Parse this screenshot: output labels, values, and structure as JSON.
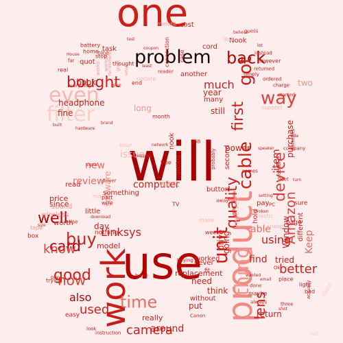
{
  "word_cloud": {
    "background": "#fdeeed",
    "palette": [
      "#b30000",
      "#cc1f1a",
      "#e0403a",
      "#ef6a62",
      "#f7938a",
      "#fab6ae",
      "#f9cfc8"
    ],
    "words": [
      {
        "text": "one",
        "color": "#cc1f1a"
      },
      {
        "text": "work",
        "color": "#c81d18"
      },
      {
        "text": "use",
        "color": "#b30000"
      },
      {
        "text": "will",
        "color": "#a80000"
      },
      {
        "text": "product",
        "color": "#f08a82"
      },
      {
        "text": "problem",
        "color": "#1f0505"
      },
      {
        "text": "back",
        "color": "#b30000"
      },
      {
        "text": "device",
        "color": "#e0403a"
      },
      {
        "text": "Amazon",
        "color": "#e0403a"
      },
      {
        "text": "unit",
        "color": "#cc1f1a"
      },
      {
        "text": "cable",
        "color": "#cc1f1a"
      },
      {
        "text": "time",
        "color": "#ef6a62"
      },
      {
        "text": "thing",
        "color": "#f7938a"
      },
      {
        "text": "bought",
        "color": "#cc1f1a"
      },
      {
        "text": "filter",
        "color": "#f9cfc8"
      },
      {
        "text": "even",
        "color": "#fab6ae"
      },
      {
        "text": "got",
        "color": "#cc1f1a"
      },
      {
        "text": "good",
        "color": "#cc1f1a"
      },
      {
        "text": "buy",
        "color": "#cc1f1a"
      },
      {
        "text": "card",
        "color": "#b30000"
      },
      {
        "text": "well",
        "color": "#b30000"
      },
      {
        "text": "now",
        "color": "#e0403a"
      },
      {
        "text": "first",
        "color": "#cc1f1a"
      },
      {
        "text": "quality",
        "color": "#cc1f1a"
      },
      {
        "text": "know",
        "color": "#e0403a"
      },
      {
        "text": "way",
        "color": "#e0403a"
      },
      {
        "text": "camera",
        "color": "#cc1f1a"
      },
      {
        "text": "used",
        "color": "#cc1f1a"
      },
      {
        "text": "better",
        "color": "#cc1f1a"
      },
      {
        "text": "lens",
        "color": "#cc1f1a"
      },
      {
        "text": "much",
        "color": "#cc1f1a"
      },
      {
        "text": "computer",
        "color": "#cc1f1a"
      },
      {
        "text": "item",
        "color": "#cc1f1a"
      },
      {
        "text": "Linksys",
        "color": "#cc1f1a"
      },
      {
        "text": "using",
        "color": "#cc1f1a"
      },
      {
        "text": "also",
        "color": "#b30000"
      },
      {
        "text": "review",
        "color": "#ef6a62"
      },
      {
        "text": "new",
        "color": "#ef6a62"
      },
      {
        "text": "issue",
        "color": "#fab6ae"
      },
      {
        "text": "software",
        "color": "#f7938a"
      },
      {
        "text": "return",
        "color": "#cc1f1a"
      },
      {
        "text": "tried",
        "color": "#cc1f1a"
      },
      {
        "text": "find",
        "color": "#cc1f1a"
      },
      {
        "text": "Keep",
        "color": "#ef6a62"
      },
      {
        "text": "able",
        "color": "#ef6a62"
      },
      {
        "text": "headphone",
        "color": "#cc1f1a"
      },
      {
        "text": "need",
        "color": "#cc1f1a"
      },
      {
        "text": "think",
        "color": "#cc1f1a"
      },
      {
        "text": "really",
        "color": "#cc1f1a"
      },
      {
        "text": "around",
        "color": "#cc1f1a"
      },
      {
        "text": "drive",
        "color": "#cc1f1a"
      },
      {
        "text": "going",
        "color": "#cc1f1a"
      },
      {
        "text": "received",
        "color": "#fab6ae"
      },
      {
        "text": "Window",
        "color": "#cc1f1a"
      },
      {
        "text": "different",
        "color": "#cc1f1a"
      },
      {
        "text": "purchase",
        "color": "#cc1f1a"
      },
      {
        "text": "book",
        "color": "#cc1f1a"
      },
      {
        "text": "nook",
        "color": "#cc1f1a"
      },
      {
        "text": "year",
        "color": "#cc1f1a"
      },
      {
        "text": "two",
        "color": "#f7938a"
      },
      {
        "text": "long",
        "color": "#f7938a"
      },
      {
        "text": "want",
        "color": "#f7938a"
      },
      {
        "text": "worked",
        "color": "#cc1f1a"
      },
      {
        "text": "button",
        "color": "#cc1f1a"
      },
      {
        "text": "pay",
        "color": "#cc1f1a"
      },
      {
        "text": "since",
        "color": "#cc1f1a"
      },
      {
        "text": "price",
        "color": "#cc1f1a"
      },
      {
        "text": "worth",
        "color": "#cc1f1a"
      },
      {
        "text": "fine",
        "color": "#cc1f1a"
      },
      {
        "text": "read",
        "color": "#cc1f1a"
      },
      {
        "text": "day",
        "color": "#cc1f1a"
      },
      {
        "text": "little",
        "color": "#cc1f1a"
      },
      {
        "text": "model",
        "color": "#cc1f1a"
      },
      {
        "text": "nothing",
        "color": "#cc1f1a"
      },
      {
        "text": "sure",
        "color": "#cc1f1a"
      },
      {
        "text": "page",
        "color": "#cc1f1a"
      },
      {
        "text": "still",
        "color": "#cc1f1a"
      },
      {
        "text": "power",
        "color": "#cc1f1a"
      },
      {
        "text": "second",
        "color": "#cc1f1a"
      },
      {
        "text": "replacement",
        "color": "#cc1f1a"
      },
      {
        "text": "without",
        "color": "#cc1f1a"
      },
      {
        "text": "never",
        "color": "#cc1f1a"
      },
      {
        "text": "put",
        "color": "#cc1f1a"
      },
      {
        "text": "something",
        "color": "#cc1f1a"
      },
      {
        "text": "another",
        "color": "#cc1f1a"
      },
      {
        "text": "many",
        "color": "#cc1f1a"
      },
      {
        "text": "cord",
        "color": "#cc1f1a"
      },
      {
        "text": "cost",
        "color": "#cc1f1a"
      },
      {
        "text": "Nook",
        "color": "#cc1f1a"
      },
      {
        "text": "home",
        "color": "#cc1f1a"
      },
      {
        "text": "battery",
        "color": "#cc1f1a"
      },
      {
        "text": "minute",
        "color": "#f7938a"
      },
      {
        "text": "month",
        "color": "#cc1f1a"
      },
      {
        "text": "however",
        "color": "#cc1f1a"
      },
      {
        "text": "quot",
        "color": "#cc1f1a"
      },
      {
        "text": "end",
        "color": "#cc1f1a"
      },
      {
        "text": "wireless",
        "color": "#f7938a"
      },
      {
        "text": "sound",
        "color": "#f7938a"
      },
      {
        "text": "tape",
        "color": "#f7938a"
      },
      {
        "text": "box",
        "color": "#cc1f1a"
      },
      {
        "text": "hold",
        "color": "#cc1f1a"
      },
      {
        "text": "plastic",
        "color": "#fab6ae"
      },
      {
        "text": "cheap",
        "color": "#fab6ae"
      },
      {
        "text": "make",
        "color": "#fab6ae"
      },
      {
        "text": "support",
        "color": "#fab6ae"
      },
      {
        "text": "update",
        "color": "#fab6ae"
      },
      {
        "text": "hour",
        "color": "#fab6ae"
      },
      {
        "text": "made",
        "color": "#fab6ae"
      },
      {
        "text": "last",
        "color": "#fab6ae"
      },
      {
        "text": "free",
        "color": "#cc1f1a"
      },
      {
        "text": "part",
        "color": "#cc1f1a"
      },
      {
        "text": "wire",
        "color": "#cc1f1a"
      },
      {
        "text": "Glass",
        "color": "#f9cfc8"
      },
      {
        "text": "half",
        "color": "#f9cfc8"
      },
      {
        "text": "test",
        "color": "#cc1f1a"
      },
      {
        "text": "connection",
        "color": "#cc1f1a"
      },
      {
        "text": "reader",
        "color": "#cc1f1a"
      },
      {
        "text": "real",
        "color": "#cc1f1a"
      },
      {
        "text": "nice",
        "color": "#cc1f1a"
      },
      {
        "text": "far",
        "color": "#cc1f1a"
      },
      {
        "text": "works",
        "color": "#f7938a"
      },
      {
        "text": "working",
        "color": "#f7938a"
      },
      {
        "text": "recommend",
        "color": "#f7938a"
      },
      {
        "text": "great",
        "color": "#f7938a"
      },
      {
        "text": "small",
        "color": "#f7938a"
      },
      {
        "text": "easy",
        "color": "#cc1f1a"
      },
      {
        "text": "look",
        "color": "#cc1f1a"
      },
      {
        "text": "play",
        "color": "#cc1f1a"
      },
      {
        "text": "trying",
        "color": "#cc1f1a"
      },
      {
        "text": "signal",
        "color": "#cc1f1a"
      },
      {
        "text": "network",
        "color": "#cc1f1a"
      },
      {
        "text": "brand",
        "color": "#cc1f1a"
      },
      {
        "text": "size",
        "color": "#cc1f1a"
      },
      {
        "text": "TV",
        "color": "#cc1f1a"
      },
      {
        "text": "hard",
        "color": "#cc1f1a"
      },
      {
        "text": "light",
        "color": "#cc1f1a"
      },
      {
        "text": "place",
        "color": "#cc1f1a"
      },
      {
        "text": "shot",
        "color": "#cc1f1a"
      },
      {
        "text": "Canon",
        "color": "#cc1f1a"
      },
      {
        "text": "always",
        "color": "#cc1f1a"
      },
      {
        "text": "charge",
        "color": "#cc1f1a"
      },
      {
        "text": "started",
        "color": "#cc1f1a"
      },
      {
        "text": "fit",
        "color": "#cc1f1a"
      },
      {
        "text": "instruction",
        "color": "#cc1f1a"
      },
      {
        "text": "ordered",
        "color": "#cc1f1a"
      },
      {
        "text": "returned",
        "color": "#cc1f1a"
      },
      {
        "text": "maybe",
        "color": "#cc1f1a"
      },
      {
        "text": "USB",
        "color": "#cc1f1a"
      },
      {
        "text": "bad",
        "color": "#cc1f1a"
      },
      {
        "text": "everything",
        "color": "#cc1f1a"
      },
      {
        "text": "guess",
        "color": "#cc1f1a"
      },
      {
        "text": "simply",
        "color": "#cc1f1a"
      },
      {
        "text": "case",
        "color": "#cc1f1a"
      },
      {
        "text": "coupon",
        "color": "#cc1f1a"
      },
      {
        "text": "buying",
        "color": "#cc1f1a"
      },
      {
        "text": "driver",
        "color": "#cc1f1a"
      },
      {
        "text": "instead",
        "color": "#cc1f1a"
      },
      {
        "text": "noise",
        "color": "#cc1f1a"
      },
      {
        "text": "Ok",
        "color": "#cc1f1a"
      },
      {
        "text": "lot",
        "color": "#cc1f1a"
      },
      {
        "text": "company",
        "color": "#cc1f1a"
      },
      {
        "text": "speaker",
        "color": "#cc1f1a"
      },
      {
        "text": "week",
        "color": "#cc1f1a"
      },
      {
        "text": "task",
        "color": "#cc1f1a"
      },
      {
        "text": "stop",
        "color": "#cc1f1a"
      },
      {
        "text": "thought",
        "color": "#cc1f1a"
      },
      {
        "text": "batteries",
        "color": "#cc1f1a"
      },
      {
        "text": "setting",
        "color": "#cc1f1a"
      },
      {
        "text": "shopping",
        "color": "#cc1f1a"
      },
      {
        "text": "least",
        "color": "#cc1f1a"
      },
      {
        "text": "away",
        "color": "#cc1f1a"
      },
      {
        "text": "three",
        "color": "#cc1f1a"
      },
      {
        "text": "wanted",
        "color": "#cc1f1a"
      },
      {
        "text": "comes",
        "color": "#cc1f1a"
      },
      {
        "text": "built",
        "color": "#cc1f1a"
      },
      {
        "text": "download",
        "color": "#cc1f1a"
      },
      {
        "text": "side",
        "color": "#cc1f1a"
      },
      {
        "text": "give",
        "color": "#cc1f1a"
      },
      {
        "text": "getting",
        "color": "#cc1f1a"
      },
      {
        "text": "probably",
        "color": "#cc1f1a"
      },
      {
        "text": "believe",
        "color": "#cc1f1a"
      },
      {
        "text": "probably",
        "color": "#cc1f1a"
      },
      {
        "text": "actually",
        "color": "#cc1f1a"
      },
      {
        "text": "House",
        "color": "#cc1f1a"
      },
      {
        "text": "done",
        "color": "#cc1f1a"
      },
      {
        "text": "email",
        "color": "#cc1f1a"
      },
      {
        "text": "set",
        "color": "#cc1f1a"
      },
      {
        "text": "PC",
        "color": "#cc1f1a"
      },
      {
        "text": "broken",
        "color": "#cc1f1a"
      },
      {
        "text": "turn",
        "color": "#cc1f1a"
      },
      {
        "text": "hardware",
        "color": "#cc1f1a"
      }
    ]
  }
}
